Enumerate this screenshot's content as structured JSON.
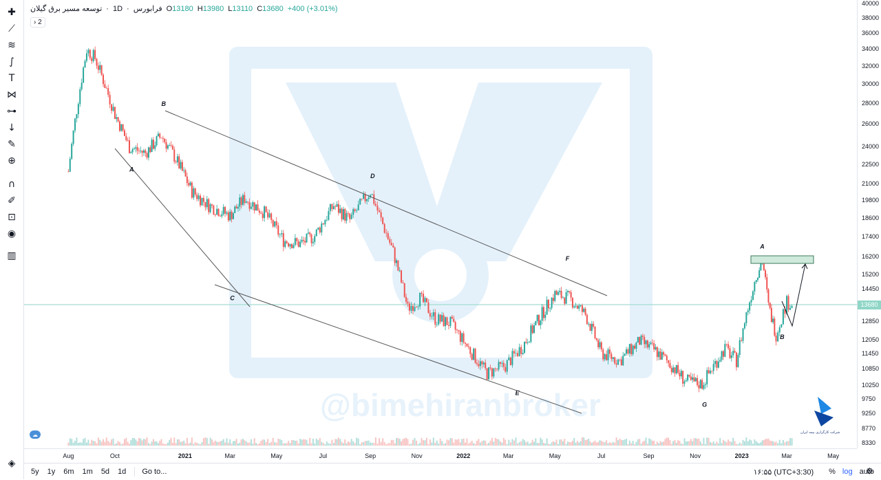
{
  "legend": {
    "symbol": "توسعه مسیر برق گیلان",
    "interval": "1D",
    "exchange": "فرابورس",
    "open_label": "O",
    "open": "13180",
    "high_label": "H",
    "high": "13980",
    "low_label": "L",
    "low": "13110",
    "close_label": "C",
    "close": "13680",
    "change": "+400 (+3.01%)",
    "collapse": "2"
  },
  "current_price": "13680",
  "watermark": "@bimehiranbroker",
  "logo_text": "شرکت کارگزاری بیمه ایران",
  "logo_subtext": "بیمه ایران شرکت نمایندگی",
  "colors": {
    "up": "#26a69a",
    "down": "#ef5350",
    "accent": "#2962ff",
    "current_line": "#8fd6c7"
  },
  "toolbar_icons": [
    "crosshair-icon",
    "trend-line-icon",
    "fib-icon",
    "brush-icon",
    "text-icon",
    "pattern-icon",
    "measure-icon",
    "arrow-down-icon",
    "ruler-icon",
    "zoom-in-icon",
    "magnet-icon",
    "lock-drawing-icon",
    "unlock-icon",
    "eye-icon",
    "trash-icon"
  ],
  "bottom_bar": {
    "ranges": [
      "5y",
      "1y",
      "6m",
      "1m",
      "5d",
      "1d"
    ],
    "goto": "Go to...",
    "time": "۱۶:۵۵ (UTC+3:30)",
    "percent": "%",
    "log": "log",
    "auto": "auto"
  },
  "chart_data": {
    "type": "candlestick",
    "price_ticks": [
      "40000",
      "38000",
      "36000",
      "34000",
      "32000",
      "30000",
      "28000",
      "26000",
      "24000",
      "22500",
      "21000",
      "19800",
      "18600",
      "17400",
      "16200",
      "15200",
      "14450",
      "13680",
      "12850",
      "12050",
      "11450",
      "10850",
      "10250",
      "9750",
      "9250",
      "8770",
      "8330"
    ],
    "time_ticks": [
      "Aug",
      "Oct",
      "2021",
      "Mar",
      "May",
      "Jul",
      "Sep",
      "Nov",
      "2022",
      "Mar",
      "May",
      "Jul",
      "Sep",
      "Nov",
      "2023",
      "Mar",
      "May"
    ],
    "log_scale": true,
    "annotations": [
      {
        "label": "A",
        "date": "2020-10-20",
        "price": 22000
      },
      {
        "label": "B",
        "date": "2020-12-01",
        "price": 27800
      },
      {
        "label": "C",
        "date": "2021-03-01",
        "price": 13900
      },
      {
        "label": "D",
        "date": "2021-09-01",
        "price": 21500
      },
      {
        "label": "E",
        "date": "2022-03-10",
        "price": 9900
      },
      {
        "label": "F",
        "date": "2022-05-15",
        "price": 16000
      },
      {
        "label": "G",
        "date": "2022-11-10",
        "price": 9500
      },
      {
        "label": "A",
        "date": "2023-01-25",
        "price": 16700
      },
      {
        "label": "B",
        "date": "2023-02-20",
        "price": 12100
      }
    ],
    "series": [
      {
        "date": "2020-08-01",
        "close": 22000
      },
      {
        "date": "2020-08-25",
        "close": 34000
      },
      {
        "date": "2020-09-05",
        "close": 33000
      },
      {
        "date": "2020-09-20",
        "close": 29500
      },
      {
        "date": "2020-10-01",
        "close": 27000
      },
      {
        "date": "2020-10-20",
        "close": 24000
      },
      {
        "date": "2020-11-10",
        "close": 23500
      },
      {
        "date": "2020-12-01",
        "close": 25000
      },
      {
        "date": "2020-12-20",
        "close": 23000
      },
      {
        "date": "2021-01-10",
        "close": 20500
      },
      {
        "date": "2021-02-01",
        "close": 19500
      },
      {
        "date": "2021-03-01",
        "close": 18800
      },
      {
        "date": "2021-03-20",
        "close": 20000
      },
      {
        "date": "2021-04-15",
        "close": 19000
      },
      {
        "date": "2021-05-10",
        "close": 17200
      },
      {
        "date": "2021-06-01",
        "close": 17000
      },
      {
        "date": "2021-06-20",
        "close": 17500
      },
      {
        "date": "2021-07-15",
        "close": 19500
      },
      {
        "date": "2021-08-05",
        "close": 18500
      },
      {
        "date": "2021-09-01",
        "close": 20500
      },
      {
        "date": "2021-09-15",
        "close": 18500
      },
      {
        "date": "2021-10-01",
        "close": 16500
      },
      {
        "date": "2021-10-20",
        "close": 13500
      },
      {
        "date": "2021-11-05",
        "close": 14000
      },
      {
        "date": "2021-11-25",
        "close": 13000
      },
      {
        "date": "2021-12-15",
        "close": 12800
      },
      {
        "date": "2022-01-10",
        "close": 11600
      },
      {
        "date": "2022-02-01",
        "close": 10700
      },
      {
        "date": "2022-02-25",
        "close": 11000
      },
      {
        "date": "2022-03-20",
        "close": 11800
      },
      {
        "date": "2022-04-10",
        "close": 13000
      },
      {
        "date": "2022-05-01",
        "close": 14200
      },
      {
        "date": "2022-05-20",
        "close": 14000
      },
      {
        "date": "2022-06-10",
        "close": 13200
      },
      {
        "date": "2022-07-01",
        "close": 11500
      },
      {
        "date": "2022-07-25",
        "close": 11200
      },
      {
        "date": "2022-08-20",
        "close": 12000
      },
      {
        "date": "2022-09-10",
        "close": 11600
      },
      {
        "date": "2022-10-01",
        "close": 11000
      },
      {
        "date": "2022-10-20",
        "close": 10400
      },
      {
        "date": "2022-11-10",
        "close": 10300
      },
      {
        "date": "2022-11-25",
        "close": 11000
      },
      {
        "date": "2022-12-10",
        "close": 11700
      },
      {
        "date": "2022-12-25",
        "close": 11200
      },
      {
        "date": "2023-01-20",
        "close": 15200
      },
      {
        "date": "2023-01-28",
        "close": 16100
      },
      {
        "date": "2023-02-05",
        "close": 13600
      },
      {
        "date": "2023-02-15",
        "close": 12300
      },
      {
        "date": "2023-03-01",
        "close": 13800
      },
      {
        "date": "2023-03-10",
        "close": 13680
      }
    ]
  }
}
